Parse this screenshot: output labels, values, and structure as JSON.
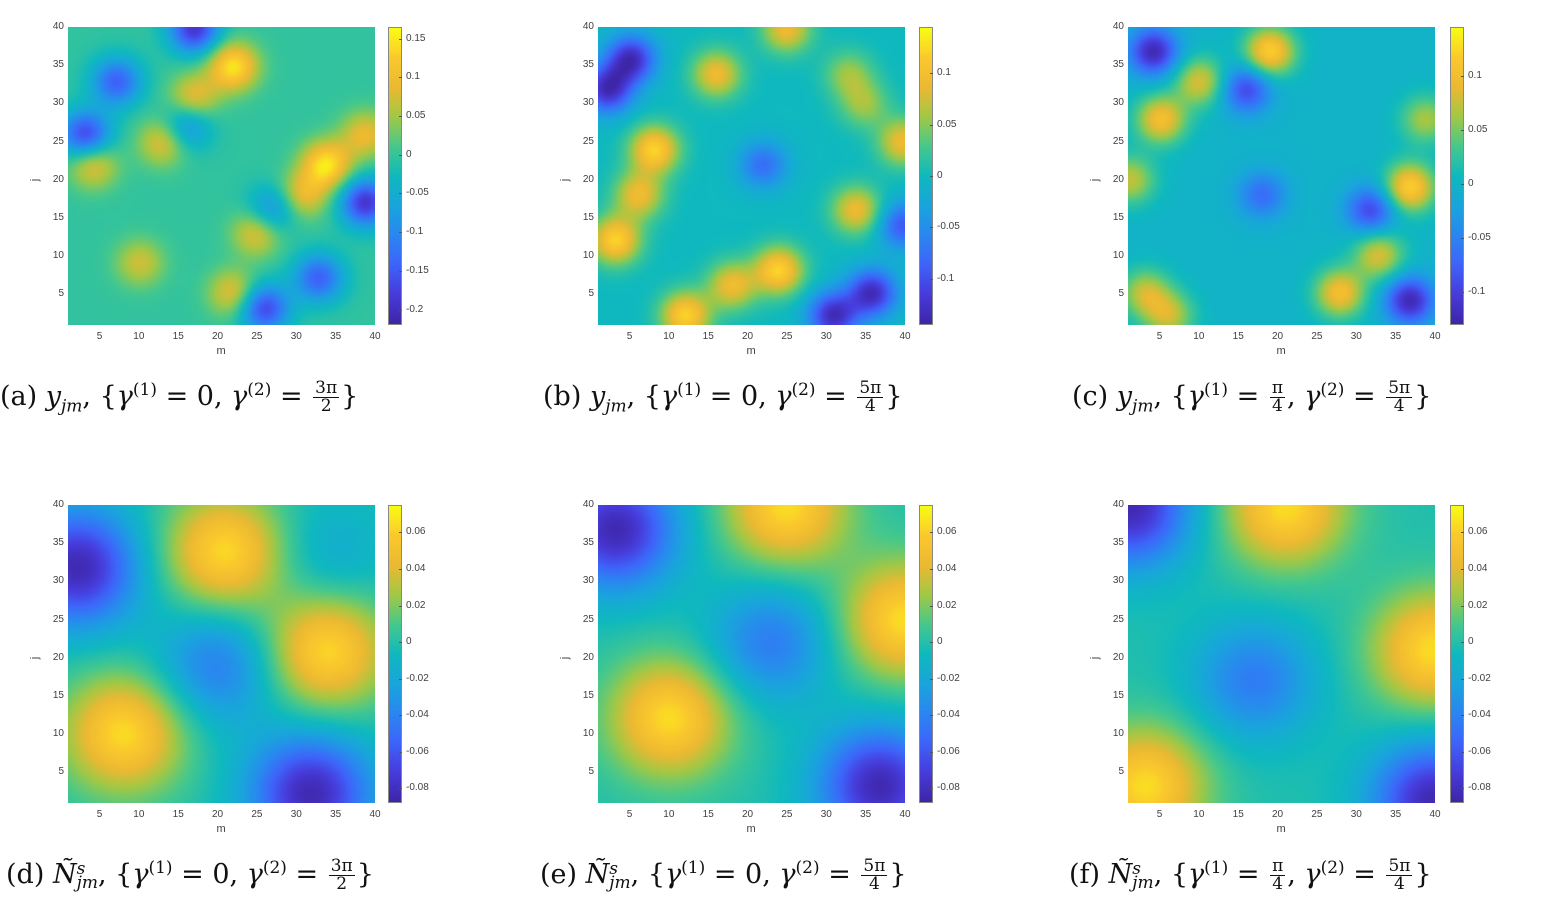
{
  "chart_data": [
    {
      "id": "a",
      "type": "heatmap",
      "caption": "(a) y_jm, {γ(1) = 0, γ(2) = 3π/2}",
      "caption_parts": {
        "label": "(a)",
        "var": "y",
        "sub": "jm",
        "g1": "0",
        "g2_num": "3π",
        "g2_den": "2"
      },
      "xlabel": "m",
      "ylabel": "j",
      "xlim": [
        1,
        40
      ],
      "ylim": [
        1,
        40
      ],
      "xticks": [
        5,
        10,
        15,
        20,
        25,
        30,
        35,
        40
      ],
      "yticks": [
        5,
        10,
        15,
        20,
        25,
        30,
        35,
        40
      ],
      "colormap": "parula",
      "clim": [
        -0.22,
        0.165
      ],
      "colorbar_ticks": [
        0.15,
        0.1,
        0.05,
        0,
        -0.05,
        -0.1,
        -0.15,
        -0.2
      ],
      "features": [
        {
          "m": 22,
          "j": 35,
          "v": 0.16
        },
        {
          "m": 34,
          "j": 22,
          "v": 0.16
        },
        {
          "m": 17,
          "j": 31,
          "v": 0.1
        },
        {
          "m": 13,
          "j": 25,
          "v": 0.1
        },
        {
          "m": 31,
          "j": 18,
          "v": 0.1
        },
        {
          "m": 25,
          "j": 13,
          "v": 0.1
        },
        {
          "m": 10,
          "j": 9,
          "v": 0.08
        },
        {
          "m": 22,
          "j": 5,
          "v": 0.1
        },
        {
          "m": 4,
          "j": 22,
          "v": 0.1
        },
        {
          "m": 39,
          "j": 26,
          "v": 0.1
        },
        {
          "m": 17,
          "j": 40,
          "v": -0.2
        },
        {
          "m": 39,
          "j": 17,
          "v": -0.2
        },
        {
          "m": 7,
          "j": 33,
          "v": -0.15
        },
        {
          "m": 3,
          "j": 26,
          "v": -0.18
        },
        {
          "m": 33,
          "j": 7,
          "v": -0.15
        },
        {
          "m": 26,
          "j": 3,
          "v": -0.18
        },
        {
          "m": 16,
          "j": 27,
          "v": -0.1
        },
        {
          "m": 27,
          "j": 16,
          "v": -0.1
        }
      ]
    },
    {
      "id": "b",
      "type": "heatmap",
      "caption": "(b) y_jm, {γ(1) = 0, γ(2) = 5π/4}",
      "caption_parts": {
        "label": "(b)",
        "var": "y",
        "sub": "jm",
        "g1": "0",
        "g2_num": "5π",
        "g2_den": "4"
      },
      "xlabel": "m",
      "ylabel": "j",
      "xlim": [
        1,
        40
      ],
      "ylim": [
        1,
        40
      ],
      "xticks": [
        5,
        10,
        15,
        20,
        25,
        30,
        35,
        40
      ],
      "yticks": [
        5,
        10,
        15,
        20,
        25,
        30,
        35,
        40
      ],
      "colormap": "parula",
      "clim": [
        -0.145,
        0.145
      ],
      "colorbar_ticks": [
        0.1,
        0.05,
        0,
        -0.05,
        -0.1
      ],
      "features": [
        {
          "m": 8,
          "j": 24,
          "v": 0.13
        },
        {
          "m": 24,
          "j": 8,
          "v": 0.13
        },
        {
          "m": 3,
          "j": 12,
          "v": 0.13
        },
        {
          "m": 12,
          "j": 2,
          "v": 0.13
        },
        {
          "m": 6,
          "j": 18,
          "v": 0.1
        },
        {
          "m": 18,
          "j": 6,
          "v": 0.1
        },
        {
          "m": 16,
          "j": 34,
          "v": 0.1
        },
        {
          "m": 34,
          "j": 16,
          "v": 0.1
        },
        {
          "m": 25,
          "j": 40,
          "v": 0.1
        },
        {
          "m": 40,
          "j": 25,
          "v": 0.1
        },
        {
          "m": 33,
          "j": 34,
          "v": 0.06
        },
        {
          "m": 35,
          "j": 30,
          "v": 0.06
        },
        {
          "m": 5,
          "j": 36,
          "v": -0.14
        },
        {
          "m": 2,
          "j": 32,
          "v": -0.14
        },
        {
          "m": 36,
          "j": 5,
          "v": -0.14
        },
        {
          "m": 31,
          "j": 2,
          "v": -0.14
        },
        {
          "m": 22,
          "j": 22,
          "v": -0.08
        },
        {
          "m": 40,
          "j": 14,
          "v": -0.1
        }
      ]
    },
    {
      "id": "c",
      "type": "heatmap",
      "caption": "(c) y_jm, {γ(1) = π/4, γ(2) = 5π/4}",
      "caption_parts": {
        "label": "(c)",
        "var": "y",
        "sub": "jm",
        "g1_num": "π",
        "g1_den": "4",
        "g2_num": "5π",
        "g2_den": "4"
      },
      "xlabel": "m",
      "ylabel": "j",
      "xlim": [
        1,
        40
      ],
      "ylim": [
        1,
        40
      ],
      "xticks": [
        5,
        10,
        15,
        20,
        25,
        30,
        35,
        40
      ],
      "yticks": [
        5,
        10,
        15,
        20,
        25,
        30,
        35,
        40
      ],
      "colormap": "parula",
      "clim": [
        -0.13,
        0.145
      ],
      "colorbar_ticks": [
        0.1,
        0.05,
        0,
        -0.05,
        -0.1
      ],
      "features": [
        {
          "m": 19,
          "j": 37,
          "v": 0.13
        },
        {
          "m": 37,
          "j": 19,
          "v": 0.13
        },
        {
          "m": 5,
          "j": 28,
          "v": 0.11
        },
        {
          "m": 28,
          "j": 5,
          "v": 0.11
        },
        {
          "m": 10,
          "j": 33,
          "v": 0.09
        },
        {
          "m": 33,
          "j": 10,
          "v": 0.09
        },
        {
          "m": 3,
          "j": 5,
          "v": 0.08
        },
        {
          "m": 6,
          "j": 2,
          "v": 0.08
        },
        {
          "m": 1,
          "j": 20,
          "v": 0.08
        },
        {
          "m": 39,
          "j": 28,
          "v": 0.07
        },
        {
          "m": 4,
          "j": 37,
          "v": -0.13
        },
        {
          "m": 37,
          "j": 4,
          "v": -0.13
        },
        {
          "m": 16,
          "j": 32,
          "v": -0.1
        },
        {
          "m": 32,
          "j": 16,
          "v": -0.1
        },
        {
          "m": 18,
          "j": 18,
          "v": -0.07
        }
      ]
    },
    {
      "id": "d",
      "type": "heatmap",
      "caption": "(d) Ñ^s_jm, {γ(1) = 0, γ(2) = 3π/2}",
      "caption_parts": {
        "label": "(d)",
        "var": "Ñ",
        "sup": "s",
        "sub": "jm",
        "g1": "0",
        "g2_num": "3π",
        "g2_den": "2"
      },
      "xlabel": "m",
      "ylabel": "j",
      "xlim": [
        1,
        40
      ],
      "ylim": [
        1,
        40
      ],
      "xticks": [
        5,
        10,
        15,
        20,
        25,
        30,
        35,
        40
      ],
      "yticks": [
        5,
        10,
        15,
        20,
        25,
        30,
        35,
        40
      ],
      "colormap": "parula",
      "clim": [
        -0.088,
        0.075
      ],
      "colorbar_ticks": [
        0.06,
        0.04,
        0.02,
        0,
        -0.02,
        -0.04,
        -0.06,
        -0.08
      ],
      "features": [
        {
          "m": 21,
          "j": 34,
          "v": 0.07
        },
        {
          "m": 34,
          "j": 21,
          "v": 0.07
        },
        {
          "m": 8,
          "j": 10,
          "v": 0.07
        },
        {
          "m": 20,
          "j": 19,
          "v": -0.045
        },
        {
          "m": 34,
          "j": 33,
          "v": -0.02
        },
        {
          "m": 2,
          "j": 32,
          "v": -0.088
        },
        {
          "m": 32,
          "j": 2,
          "v": -0.088
        }
      ]
    },
    {
      "id": "e",
      "type": "heatmap",
      "caption": "(e) Ñ^s_jm, {γ(1) = 0, γ(2) = 5π/4}",
      "caption_parts": {
        "label": "(e)",
        "var": "Ñ",
        "sup": "s",
        "sub": "jm",
        "g1": "0",
        "g2_num": "5π",
        "g2_den": "4"
      },
      "xlabel": "m",
      "ylabel": "j",
      "xlim": [
        1,
        40
      ],
      "ylim": [
        1,
        40
      ],
      "xticks": [
        5,
        10,
        15,
        20,
        25,
        30,
        35,
        40
      ],
      "yticks": [
        5,
        10,
        15,
        20,
        25,
        30,
        35,
        40
      ],
      "colormap": "parula",
      "clim": [
        -0.088,
        0.075
      ],
      "colorbar_ticks": [
        0.06,
        0.04,
        0.02,
        0,
        -0.02,
        -0.04,
        -0.06,
        -0.08
      ],
      "features": [
        {
          "m": 25,
          "j": 40,
          "v": 0.07
        },
        {
          "m": 40,
          "j": 25,
          "v": 0.07
        },
        {
          "m": 10,
          "j": 12,
          "v": 0.07
        },
        {
          "m": 23,
          "j": 22,
          "v": -0.045
        },
        {
          "m": 3,
          "j": 37,
          "v": -0.088
        },
        {
          "m": 37,
          "j": 3,
          "v": -0.088
        }
      ]
    },
    {
      "id": "f",
      "type": "heatmap",
      "caption": "(f) Ñ^s_jm, {γ(1) = π/4, γ(2) = 5π/4}",
      "caption_parts": {
        "label": "(f)",
        "var": "Ñ",
        "sup": "s",
        "sub": "jm",
        "g1_num": "π",
        "g1_den": "4",
        "g2_num": "5π",
        "g2_den": "4"
      },
      "xlabel": "m",
      "ylabel": "j",
      "xlim": [
        1,
        40
      ],
      "ylim": [
        1,
        40
      ],
      "xticks": [
        5,
        10,
        15,
        20,
        25,
        30,
        35,
        40
      ],
      "yticks": [
        5,
        10,
        15,
        20,
        25,
        30,
        35,
        40
      ],
      "colormap": "parula",
      "clim": [
        -0.088,
        0.075
      ],
      "colorbar_ticks": [
        0.06,
        0.04,
        0.02,
        0,
        -0.02,
        -0.04,
        -0.06,
        -0.08
      ],
      "features": [
        {
          "m": 21,
          "j": 40,
          "v": 0.07
        },
        {
          "m": 40,
          "j": 21,
          "v": 0.07
        },
        {
          "m": 3,
          "j": 3,
          "v": 0.07
        },
        {
          "m": 17,
          "j": 17,
          "v": -0.045
        },
        {
          "m": 1,
          "j": 40,
          "v": -0.088
        },
        {
          "m": 40,
          "j": 1,
          "v": -0.088
        }
      ]
    }
  ]
}
